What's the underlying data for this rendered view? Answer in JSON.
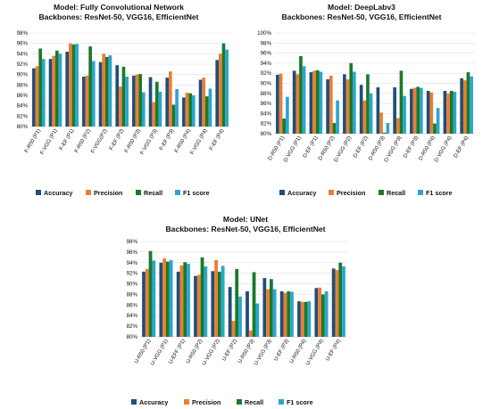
{
  "series_colors": [
    "#1f4e79",
    "#ed7d31",
    "#1a7a2a",
    "#2aa6cf"
  ],
  "chart_data": [
    {
      "type": "bar",
      "title": "Model: Fully Convolutional Network",
      "subtitle": "Backbones: ResNet-50, VGG16, EfficientNet",
      "ylim": [
        80,
        98
      ],
      "yticks": [
        "80%",
        "82%",
        "84%",
        "86%",
        "88%",
        "90%",
        "92%",
        "94%",
        "96%",
        "98%"
      ],
      "categories": [
        "F-R50 (P1)",
        "F-VGG (P1)",
        "F-EF (P1)",
        "F-R50 (P2)",
        "F-VGG(P2)",
        "F-EF (P2)",
        "F-R50 (P3)",
        "F-VGG (P3)",
        "F-EF (P3)",
        "F-R50 (P4)",
        "F-VGG (P4)",
        "F-EF (P4)"
      ],
      "legend_position": "bottom",
      "series": [
        {
          "name": "Accuracy",
          "values": [
            91.2,
            93.0,
            94.4,
            89.6,
            92.4,
            91.8,
            89.8,
            89.5,
            89.4,
            85.6,
            89.0,
            92.8
          ]
        },
        {
          "name": "Precision",
          "values": [
            91.6,
            93.6,
            96.0,
            89.8,
            94.0,
            87.7,
            90.0,
            84.7,
            90.6,
            86.5,
            89.4,
            94.0
          ]
        },
        {
          "name": "Recall",
          "values": [
            95.0,
            94.6,
            95.8,
            95.4,
            93.4,
            91.5,
            90.1,
            88.6,
            84.2,
            86.4,
            85.8,
            96.0
          ]
        },
        {
          "name": "F1 score",
          "values": [
            93.0,
            94.0,
            95.9,
            92.6,
            93.7,
            89.6,
            86.6,
            86.7,
            87.2,
            86.0,
            87.3,
            94.8
          ]
        }
      ]
    },
    {
      "type": "bar",
      "title": "Model: DeepLabv3",
      "subtitle": "Backbones: ResNet-50, VGG16, EfficientNet",
      "ylim": [
        80,
        100
      ],
      "yticks": [
        "80%",
        "82%",
        "84%",
        "86%",
        "88%",
        "90%",
        "92%",
        "94%",
        "96%",
        "98%",
        "100%"
      ],
      "categories": [
        "D-R50 (P1)",
        "D-VGG (P1)",
        "D-EF (P1)",
        "D-R50 (P2)",
        "D-VGG (P2)",
        "D-EF (P2)",
        "D-R50 (P3)",
        "D-VGG (P3)",
        "D-EF (P3)",
        "D-R50 (P4)",
        "D-VGG (P4)",
        "D-EF (P4)"
      ],
      "legend_position": "bottom",
      "series": [
        {
          "name": "Accuracy",
          "values": [
            91.7,
            92.5,
            92.2,
            90.8,
            91.8,
            89.7,
            89.2,
            89.2,
            88.9,
            88.5,
            88.5,
            91.0
          ]
        },
        {
          "name": "Precision",
          "values": [
            91.9,
            91.8,
            92.5,
            91.5,
            90.8,
            86.6,
            84.2,
            83.1,
            89.1,
            88.2,
            88.0,
            90.6
          ]
        },
        {
          "name": "Recall",
          "values": [
            83.0,
            95.4,
            92.6,
            82.1,
            94.0,
            91.8,
            80.2,
            92.5,
            89.3,
            82.0,
            88.5,
            92.2
          ]
        },
        {
          "name": "F1 score",
          "values": [
            87.3,
            93.4,
            92.3,
            86.6,
            92.3,
            88.0,
            82.1,
            87.5,
            89.1,
            85.1,
            88.3,
            91.4
          ]
        }
      ]
    },
    {
      "type": "bar",
      "title": "Model: UNet",
      "subtitle": "Backbones: ResNet-50, VGG16, EfficientNet",
      "ylim": [
        80,
        98
      ],
      "yticks": [
        "80%",
        "82%",
        "84%",
        "86%",
        "88%",
        "90%",
        "92%",
        "94%",
        "96%",
        "98%"
      ],
      "categories": [
        "U-R50 (P1)",
        "U-VGG (P1)",
        "U-EFF (P1)",
        "U-R50 (P2)",
        "U-VGG (P2)",
        "U-EF (P2)",
        "U-R50 (P3)",
        "U-VGG (P3)",
        "U-EF (P3)",
        "U-R50 (P4)",
        "U-VGG (P4)",
        "U-EF (P4)"
      ],
      "legend_position": "bottom",
      "series": [
        {
          "name": "Accuracy",
          "values": [
            92.3,
            94.0,
            92.3,
            91.5,
            92.4,
            89.4,
            88.6,
            91.1,
            88.6,
            86.7,
            89.2,
            92.9
          ]
        },
        {
          "name": "Precision",
          "values": [
            92.8,
            94.8,
            93.5,
            91.7,
            94.5,
            83.0,
            81.2,
            89.0,
            88.3,
            86.6,
            89.3,
            92.6
          ]
        },
        {
          "name": "Recall",
          "values": [
            96.2,
            94.2,
            94.1,
            95.0,
            92.3,
            92.8,
            92.2,
            90.9,
            88.6,
            86.6,
            88.0,
            94.0
          ]
        },
        {
          "name": "F1 score",
          "values": [
            94.4,
            94.5,
            93.8,
            93.3,
            93.4,
            87.6,
            86.3,
            89.0,
            88.5,
            86.7,
            88.6,
            93.3
          ]
        }
      ]
    }
  ]
}
